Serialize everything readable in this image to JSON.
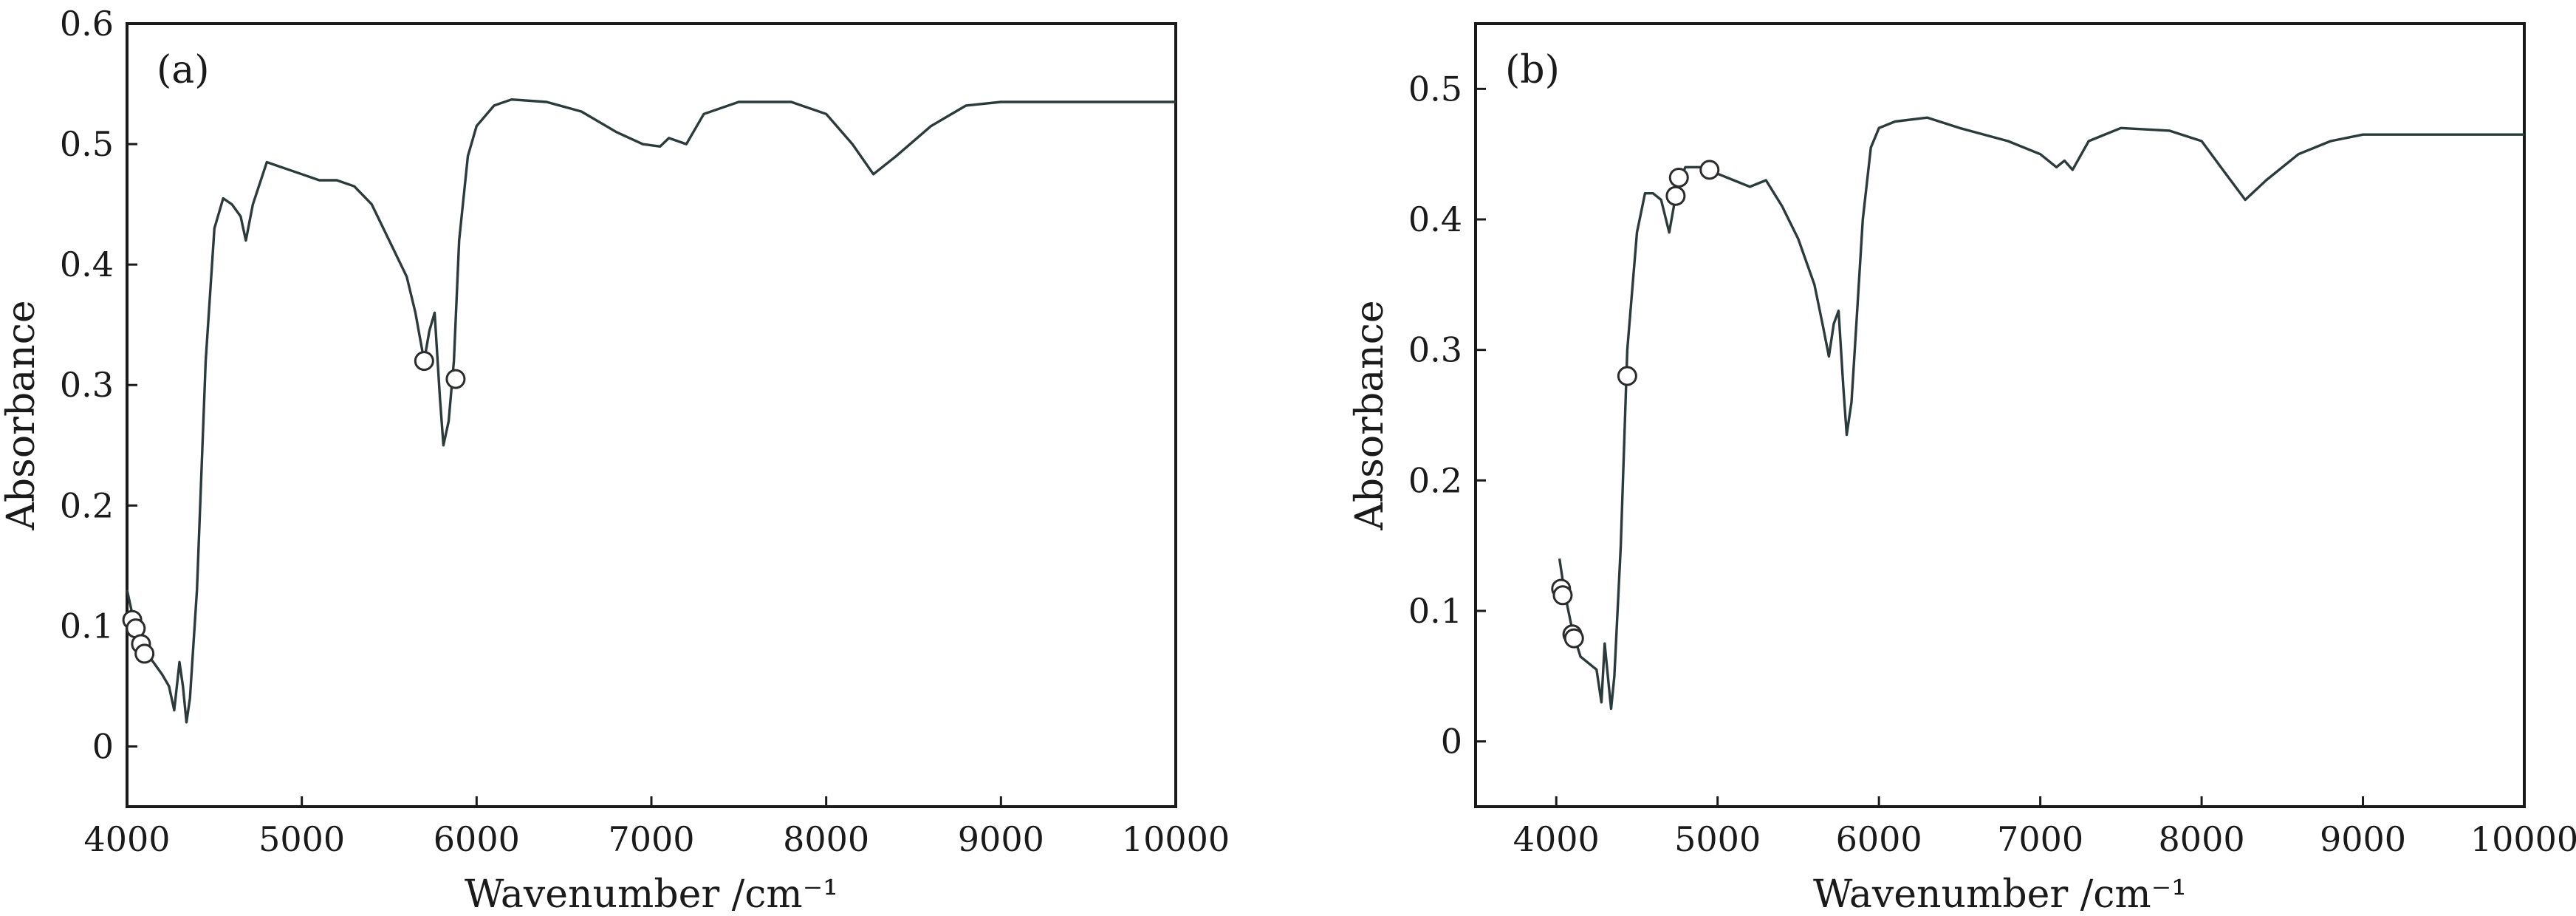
{
  "chart_data": [
    {
      "type": "line",
      "panel_label": "(a)",
      "xlabel": "Wavenumber /cm⁻¹",
      "ylabel": "Absorbance",
      "xlim": [
        4000,
        10000
      ],
      "ylim": [
        -0.05,
        0.6
      ],
      "xticks": [
        4000,
        5000,
        6000,
        7000,
        8000,
        9000,
        10000
      ],
      "yticks": [
        0,
        0.1,
        0.2,
        0.3,
        0.4,
        0.5,
        0.6
      ],
      "ytick_labels": [
        "0",
        "0.1",
        "0.2",
        "0.3",
        "0.4",
        "0.5",
        "0.6"
      ],
      "grid": false,
      "series": [
        {
          "values": [
            [
              4000,
              0.13
            ],
            [
              4030,
              0.11
            ],
            [
              4060,
              0.095
            ],
            [
              4100,
              0.08
            ],
            [
              4150,
              0.07
            ],
            [
              4200,
              0.06
            ],
            [
              4240,
              0.05
            ],
            [
              4270,
              0.03
            ],
            [
              4300,
              0.07
            ],
            [
              4320,
              0.05
            ],
            [
              4340,
              0.02
            ],
            [
              4360,
              0.04
            ],
            [
              4400,
              0.13
            ],
            [
              4450,
              0.32
            ],
            [
              4500,
              0.43
            ],
            [
              4550,
              0.455
            ],
            [
              4600,
              0.45
            ],
            [
              4650,
              0.44
            ],
            [
              4680,
              0.42
            ],
            [
              4720,
              0.45
            ],
            [
              4800,
              0.485
            ],
            [
              4900,
              0.48
            ],
            [
              5000,
              0.475
            ],
            [
              5100,
              0.47
            ],
            [
              5200,
              0.47
            ],
            [
              5300,
              0.465
            ],
            [
              5400,
              0.45
            ],
            [
              5500,
              0.42
            ],
            [
              5600,
              0.39
            ],
            [
              5650,
              0.36
            ],
            [
              5700,
              0.32
            ],
            [
              5730,
              0.345
            ],
            [
              5760,
              0.36
            ],
            [
              5790,
              0.29
            ],
            [
              5810,
              0.25
            ],
            [
              5840,
              0.27
            ],
            [
              5870,
              0.32
            ],
            [
              5900,
              0.42
            ],
            [
              5950,
              0.49
            ],
            [
              6000,
              0.515
            ],
            [
              6100,
              0.532
            ],
            [
              6200,
              0.537
            ],
            [
              6400,
              0.535
            ],
            [
              6600,
              0.527
            ],
            [
              6800,
              0.51
            ],
            [
              6950,
              0.5
            ],
            [
              7050,
              0.498
            ],
            [
              7100,
              0.505
            ],
            [
              7200,
              0.5
            ],
            [
              7300,
              0.525
            ],
            [
              7500,
              0.535
            ],
            [
              7800,
              0.535
            ],
            [
              8000,
              0.525
            ],
            [
              8150,
              0.5
            ],
            [
              8270,
              0.475
            ],
            [
              8400,
              0.49
            ],
            [
              8600,
              0.515
            ],
            [
              8800,
              0.532
            ],
            [
              9000,
              0.535
            ],
            [
              10000,
              0.535
            ]
          ]
        }
      ],
      "markers": [
        [
          4030,
          0.105
        ],
        [
          4050,
          0.098
        ],
        [
          4080,
          0.085
        ],
        [
          4100,
          0.077
        ],
        [
          5700,
          0.32
        ],
        [
          5880,
          0.305
        ]
      ]
    },
    {
      "type": "line",
      "panel_label": "(b)",
      "xlabel": "Wavenumber /cm⁻¹",
      "ylabel": "Absorbance",
      "xlim": [
        3500,
        10000
      ],
      "ylim": [
        -0.05,
        0.55
      ],
      "xticks": [
        4000,
        5000,
        6000,
        7000,
        8000,
        9000,
        10000
      ],
      "yticks": [
        0,
        0.1,
        0.2,
        0.3,
        0.4,
        0.5
      ],
      "ytick_labels": [
        "0",
        "0.1",
        "0.2",
        "0.3",
        "0.4",
        "0.5"
      ],
      "grid": false,
      "series": [
        {
          "values": [
            [
              4020,
              0.14
            ],
            [
              4050,
              0.115
            ],
            [
              4100,
              0.085
            ],
            [
              4150,
              0.065
            ],
            [
              4200,
              0.06
            ],
            [
              4250,
              0.055
            ],
            [
              4280,
              0.03
            ],
            [
              4300,
              0.075
            ],
            [
              4320,
              0.05
            ],
            [
              4340,
              0.025
            ],
            [
              4360,
              0.05
            ],
            [
              4400,
              0.15
            ],
            [
              4440,
              0.3
            ],
            [
              4500,
              0.39
            ],
            [
              4550,
              0.42
            ],
            [
              4600,
              0.42
            ],
            [
              4650,
              0.415
            ],
            [
              4700,
              0.39
            ],
            [
              4750,
              0.425
            ],
            [
              4800,
              0.44
            ],
            [
              4900,
              0.44
            ],
            [
              5000,
              0.435
            ],
            [
              5100,
              0.43
            ],
            [
              5200,
              0.425
            ],
            [
              5300,
              0.43
            ],
            [
              5400,
              0.41
            ],
            [
              5500,
              0.385
            ],
            [
              5600,
              0.35
            ],
            [
              5650,
              0.32
            ],
            [
              5690,
              0.295
            ],
            [
              5720,
              0.32
            ],
            [
              5750,
              0.33
            ],
            [
              5780,
              0.27
            ],
            [
              5800,
              0.235
            ],
            [
              5830,
              0.26
            ],
            [
              5860,
              0.32
            ],
            [
              5900,
              0.4
            ],
            [
              5950,
              0.455
            ],
            [
              6000,
              0.47
            ],
            [
              6100,
              0.475
            ],
            [
              6300,
              0.478
            ],
            [
              6500,
              0.47
            ],
            [
              6800,
              0.46
            ],
            [
              7000,
              0.45
            ],
            [
              7100,
              0.44
            ],
            [
              7150,
              0.445
            ],
            [
              7200,
              0.438
            ],
            [
              7300,
              0.46
            ],
            [
              7500,
              0.47
            ],
            [
              7800,
              0.468
            ],
            [
              8000,
              0.46
            ],
            [
              8150,
              0.435
            ],
            [
              8270,
              0.415
            ],
            [
              8400,
              0.43
            ],
            [
              8600,
              0.45
            ],
            [
              8800,
              0.46
            ],
            [
              9000,
              0.465
            ],
            [
              10000,
              0.465
            ]
          ]
        }
      ],
      "markers": [
        [
          4030,
          0.117
        ],
        [
          4040,
          0.112
        ],
        [
          4100,
          0.082
        ],
        [
          4110,
          0.079
        ],
        [
          4440,
          0.28
        ],
        [
          4740,
          0.418
        ],
        [
          4760,
          0.432
        ],
        [
          4950,
          0.438
        ]
      ]
    }
  ]
}
